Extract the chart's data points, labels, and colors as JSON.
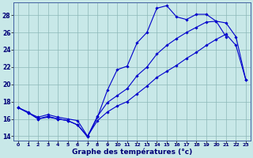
{
  "background_color": "#c8e8e8",
  "grid_color": "#8cb8b8",
  "line_color": "#0000cc",
  "xlabel": "Graphe des températures (°c)",
  "xlabel_fontsize": 6.5,
  "yticks": [
    14,
    16,
    18,
    20,
    22,
    24,
    26,
    28
  ],
  "xticks": [
    0,
    1,
    2,
    3,
    4,
    5,
    6,
    7,
    8,
    9,
    10,
    11,
    12,
    13,
    14,
    15,
    16,
    17,
    18,
    19,
    20,
    21,
    22,
    23
  ],
  "xlim": [
    -0.5,
    23.5
  ],
  "ylim": [
    13.5,
    29.5
  ],
  "series": [
    [
      17.3,
      16.8,
      16.0,
      16.3,
      16.0,
      15.8,
      15.3,
      13.9,
      16.2,
      19.3,
      21.7,
      22.1,
      24.8,
      26.0,
      28.8,
      29.1,
      27.8,
      27.5,
      28.1,
      28.1,
      27.3,
      25.5,
      null,
      null
    ],
    [
      17.3,
      16.7,
      16.2,
      16.5,
      16.2,
      16.0,
      15.8,
      14.0,
      16.3,
      17.9,
      18.7,
      19.5,
      21.0,
      22.0,
      23.5,
      24.5,
      25.3,
      26.0,
      26.6,
      27.2,
      27.3,
      27.1,
      25.5,
      20.5
    ],
    [
      17.3,
      16.7,
      16.0,
      16.2,
      16.0,
      15.8,
      15.3,
      14.0,
      15.8,
      16.8,
      17.5,
      18.0,
      18.9,
      19.8,
      20.8,
      21.5,
      22.2,
      23.0,
      23.7,
      24.5,
      25.2,
      25.8,
      24.5,
      20.5
    ]
  ],
  "figsize": [
    3.2,
    2.0
  ],
  "dpi": 100
}
